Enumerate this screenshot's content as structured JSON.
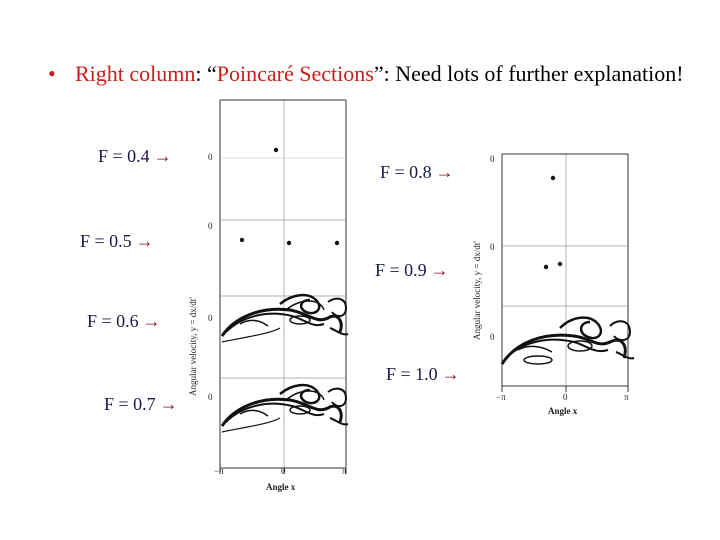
{
  "bullet": {
    "part1": "Right column",
    "part2": ": “",
    "part3": "Poincaré Sections",
    "part4": "”: Need lots of further explanation!"
  },
  "left_labels": [
    "F = 0.4",
    "F = 0.5",
    "F = 0.6",
    "F = 0.7"
  ],
  "right_labels": [
    "F = 0.8",
    "F = 0.9",
    "F = 1.0"
  ],
  "arrow_symbol": "→",
  "left_plot": {
    "ylabel": "Angular velocity, y = dx/dt'",
    "xlabel": "Angle x",
    "xticks": [
      "−π",
      "0",
      "π"
    ],
    "panel_zero_label": "0"
  },
  "right_plot": {
    "ylabel": "Angular velocity, y = dx/dt'",
    "xlabel": "Angle x",
    "xticks": [
      "−π",
      "0",
      "π"
    ],
    "panel_zero_label": "0"
  }
}
